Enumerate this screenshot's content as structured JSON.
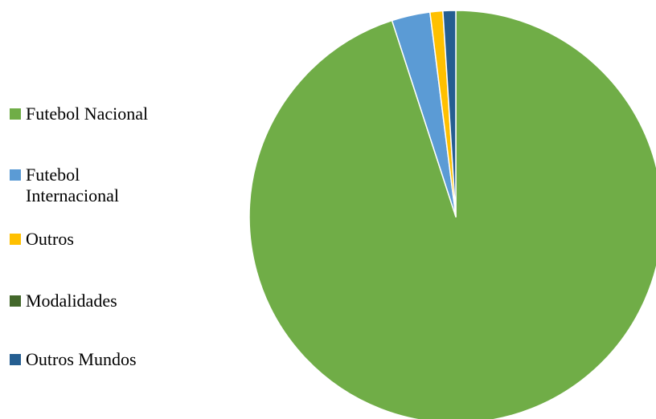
{
  "chart_data": {
    "type": "pie",
    "title": "",
    "legend_position": "left",
    "start_angle_deg": 0,
    "direction": "clockwise",
    "series": [
      {
        "categories": [
          "Futebol Nacional",
          "Futebol Internacional",
          "Outros",
          "Modalidades",
          "Outros Mundos"
        ],
        "values": [
          95,
          3,
          1,
          0,
          1
        ],
        "colors": [
          "#70AD47",
          "#5B9BD5",
          "#FFC000",
          "#43682B",
          "#255E91"
        ]
      }
    ]
  }
}
